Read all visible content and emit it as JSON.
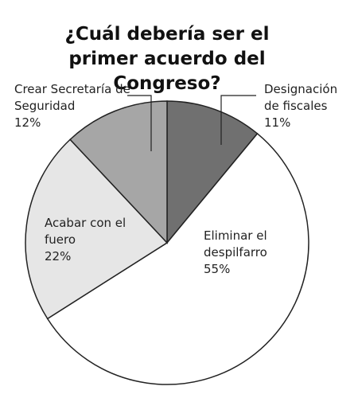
{
  "chart_data": {
    "type": "pie",
    "title": "¿Cuál debería ser el primer acuerdo del Congreso?",
    "categories": [
      "Designación de fiscales",
      "Eliminar el despilfarro",
      "Acabar con el fuero",
      "Crear Secretaría de Seguridad"
    ],
    "values": [
      11,
      55,
      22,
      12
    ],
    "value_labels": [
      "11%",
      "55%",
      "22%",
      "12%"
    ],
    "colors": [
      "#707070",
      "#ffffff",
      "#e6e6e6",
      "#a6a6a6"
    ]
  }
}
